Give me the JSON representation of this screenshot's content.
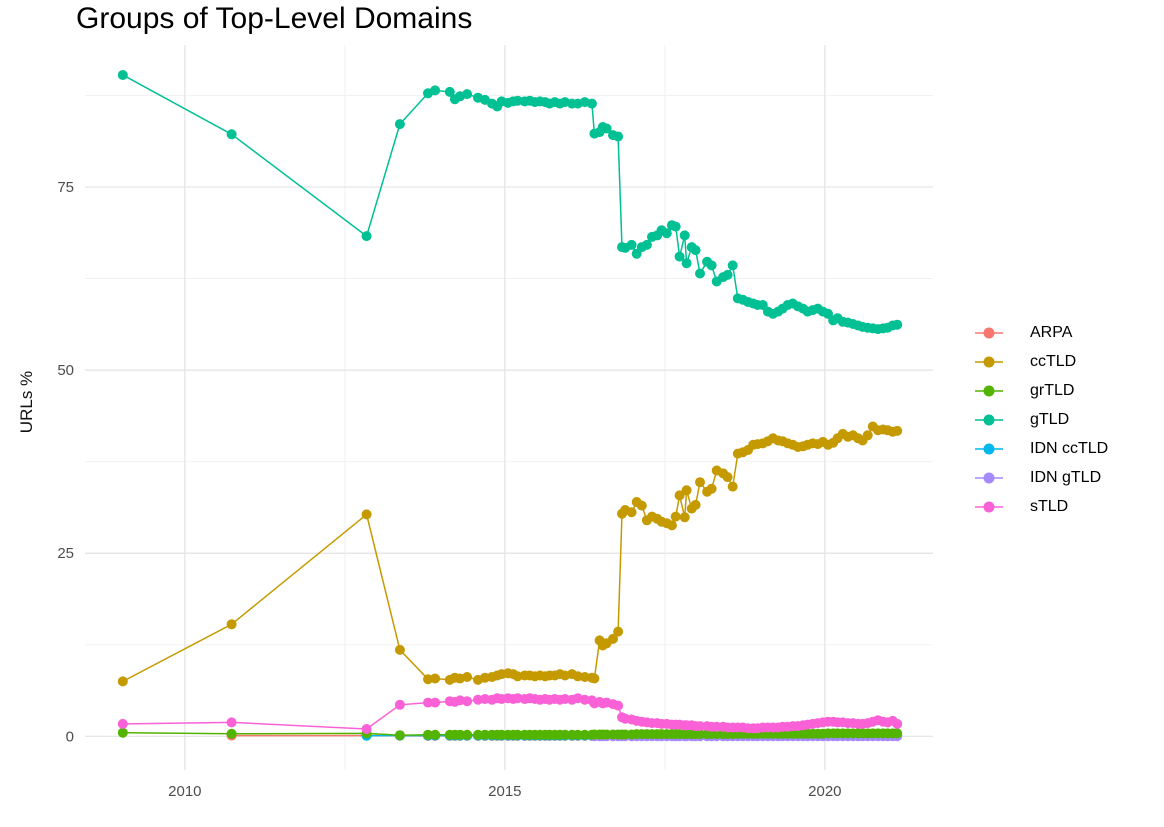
{
  "title": "Groups of Top-Level Domains",
  "legend": {
    "entries": [
      {
        "label": "ARPA",
        "color": "#F8766D"
      },
      {
        "label": "ccTLD",
        "color": "#C49A00"
      },
      {
        "label": "grTLD",
        "color": "#53B400"
      },
      {
        "label": "gTLD",
        "color": "#00C094"
      },
      {
        "label": "IDN ccTLD",
        "color": "#00B6EB"
      },
      {
        "label": "IDN gTLD",
        "color": "#A58AFF"
      },
      {
        "label": "sTLD",
        "color": "#FB61D7"
      }
    ]
  },
  "chart_data": {
    "type": "line",
    "title": "Groups of Top-Level Domains",
    "xlabel": "",
    "ylabel": "URLs %",
    "x_major_ticks": [
      2010,
      2015,
      2020
    ],
    "x_minor_ticks": [
      2012.5,
      2017.5
    ],
    "y_major_ticks": [
      0,
      25,
      50,
      75
    ],
    "y_minor_ticks": [
      12.5,
      37.5,
      62.5,
      87.5
    ],
    "xlim": [
      2008.44,
      2021.69
    ],
    "ylim": [
      -4.6,
      94.4
    ],
    "grid": "major+minor",
    "legend_position": "right",
    "tick_color": "#4d4d4d",
    "major_grid_color": "#e3e3e3",
    "minor_grid_color": "#f0f0f0",
    "dense_x": [
      2013.8,
      2013.91,
      2014.14,
      2014.22,
      2014.3,
      2014.41,
      2014.58,
      2014.69,
      2014.8,
      2014.88,
      2014.95,
      2015.05,
      2015.13,
      2015.2,
      2015.31,
      2015.39,
      2015.47,
      2015.55,
      2015.63,
      2015.7,
      2015.78,
      2015.86,
      2015.94,
      2016.05,
      2016.14,
      2016.25,
      2016.36,
      2016.4,
      2016.48,
      2016.53,
      2016.59,
      2016.69,
      2016.77,
      2016.83,
      2016.88,
      2016.98,
      2017.06,
      2017.14,
      2017.22,
      2017.3,
      2017.38,
      2017.45,
      2017.53,
      2017.61,
      2017.67,
      2017.73,
      2017.81,
      2017.84,
      2017.92,
      2017.98,
      2018.05,
      2018.16,
      2018.23,
      2018.31,
      2018.41,
      2018.48,
      2018.56,
      2018.64,
      2018.72,
      2018.8,
      2018.88,
      2018.95,
      2019.03,
      2019.11,
      2019.19,
      2019.27,
      2019.34,
      2019.42,
      2019.5,
      2019.58,
      2019.66,
      2019.73,
      2019.81,
      2019.89,
      2019.97,
      2020.05,
      2020.13,
      2020.2,
      2020.28,
      2020.36,
      2020.44,
      2020.52,
      2020.59,
      2020.67,
      2020.75,
      2020.83,
      2020.91,
      2020.98,
      2021.06,
      2021.13
    ],
    "series": [
      {
        "name": "ARPA",
        "color": "#F8766D",
        "sparse": [
          [
            2010.73,
            0.1
          ],
          [
            2012.84,
            0.1
          ],
          [
            2013.36,
            0.08
          ]
        ],
        "dense_start": 0,
        "dense": [
          0.05,
          0.05,
          0.05,
          0.05,
          0.05,
          0.05,
          0.05,
          0.05,
          0.05,
          0.05,
          0.05,
          0.05,
          0.05,
          0.05,
          0.05,
          0.05,
          0.05,
          0.05,
          0.05,
          0.05,
          0.05,
          0.05,
          0.05,
          0.05,
          0.05,
          0.05,
          0.05,
          0.05,
          0.05,
          0.05,
          0.05,
          0.05,
          0.05,
          0.05,
          0.05,
          0.05,
          0.05,
          0.05,
          0.05,
          0.05,
          0.05,
          0.05,
          0.05,
          0.05,
          0.05,
          0.05,
          0.05,
          0.05,
          0.05,
          0.05,
          0.05,
          0.05,
          0.05,
          0.05,
          0.05,
          0.05,
          0.05,
          0.05,
          0.05,
          0.05,
          0.05,
          0.05,
          0.05,
          0.05,
          0.05,
          0.05,
          0.05,
          0.05,
          0.05,
          0.05,
          0.05,
          0.05,
          0.05,
          0.05,
          0.05,
          0.05,
          0.05,
          0.05,
          0.05,
          0.05,
          0.05,
          0.05,
          0.05,
          0.05,
          0.05,
          0.05,
          0.05,
          0.05,
          0.05,
          0.05
        ]
      },
      {
        "name": "IDN ccTLD",
        "color": "#00B6EB",
        "sparse": [
          [
            2012.84,
            0.08
          ],
          [
            2013.36,
            0.1
          ]
        ],
        "dense_start": 0,
        "dense": [
          0.1,
          0.1,
          0.1,
          0.1,
          0.1,
          0.1,
          0.1,
          0.1,
          0.1,
          0.1,
          0.1,
          0.1,
          0.1,
          0.1,
          0.1,
          0.1,
          0.1,
          0.1,
          0.1,
          0.1,
          0.1,
          0.1,
          0.1,
          0.1,
          0.1,
          0.1,
          0.1,
          0.1,
          0.1,
          0.1,
          0.1,
          0.1,
          0.1,
          0.1,
          0.1,
          0.1,
          0.1,
          0.1,
          0.1,
          0.1,
          0.1,
          0.1,
          0.1,
          0.1,
          0.1,
          0.1,
          0.1,
          0.1,
          0.1,
          0.1,
          0.1,
          0.1,
          0.1,
          0.1,
          0.1,
          0.1,
          0.1,
          0.1,
          0.1,
          0.1,
          0.1,
          0.1,
          0.1,
          0.1,
          0.1,
          0.1,
          0.1,
          0.1,
          0.1,
          0.1,
          0.1,
          0.1,
          0.1,
          0.1,
          0.1,
          0.1,
          0.1,
          0.1,
          0.1,
          0.1,
          0.1,
          0.1,
          0.1,
          0.1,
          0.1,
          0.1,
          0.1,
          0.1,
          0.1,
          0.1
        ]
      },
      {
        "name": "IDN gTLD",
        "color": "#A58AFF",
        "sparse": [],
        "dense_start": 27,
        "dense": [
          0.02,
          0.02,
          0.02,
          0.02,
          0.02,
          0.02,
          0.02,
          0.02,
          0.02,
          0.02,
          0.02,
          0.02,
          0.02,
          0.02,
          0.02,
          0.02,
          0.02,
          0.02,
          0.02,
          0.02,
          0.02,
          0.02,
          0.02,
          0.02,
          0.02,
          0.02,
          0.02,
          0.02,
          0.02,
          0.02,
          0.02,
          0.02,
          0.02,
          0.02,
          0.02,
          0.02,
          0.02,
          0.02,
          0.02,
          0.02,
          0.02,
          0.02,
          0.02,
          0.02,
          0.02,
          0.02,
          0.02,
          0.02,
          0.02,
          0.02,
          0.02,
          0.02,
          0.02,
          0.02,
          0.02,
          0.02,
          0.02,
          0.02,
          0.02,
          0.02,
          0.02,
          0.02,
          0.02
        ]
      },
      {
        "name": "grTLD",
        "color": "#53B400",
        "sparse": [
          [
            2009.03,
            0.5
          ],
          [
            2010.73,
            0.35
          ],
          [
            2012.84,
            0.4
          ],
          [
            2013.36,
            0.15
          ]
        ],
        "dense_start": 0,
        "dense": [
          0.2,
          0.2,
          0.2,
          0.2,
          0.2,
          0.2,
          0.2,
          0.2,
          0.2,
          0.2,
          0.2,
          0.2,
          0.2,
          0.2,
          0.2,
          0.2,
          0.2,
          0.2,
          0.2,
          0.2,
          0.2,
          0.2,
          0.2,
          0.2,
          0.2,
          0.2,
          0.2,
          0.25,
          0.25,
          0.25,
          0.25,
          0.25,
          0.25,
          0.25,
          0.25,
          0.25,
          0.3,
          0.3,
          0.3,
          0.3,
          0.3,
          0.3,
          0.3,
          0.3,
          0.3,
          0.3,
          0.3,
          0.3,
          0.3,
          0.3,
          0.3,
          0.3,
          0.3,
          0.3,
          0.3,
          0.3,
          0.3,
          0.35,
          0.35,
          0.35,
          0.35,
          0.35,
          0.35,
          0.35,
          0.35,
          0.35,
          0.35,
          0.35,
          0.35,
          0.35,
          0.35,
          0.35,
          0.35,
          0.35,
          0.35,
          0.4,
          0.4,
          0.4,
          0.4,
          0.4,
          0.4,
          0.4,
          0.4,
          0.4,
          0.4,
          0.4,
          0.4,
          0.4,
          0.4,
          0.4
        ]
      },
      {
        "name": "ccTLD",
        "color": "#C49A00",
        "sparse": [
          [
            2009.03,
            7.5
          ],
          [
            2010.73,
            15.3
          ],
          [
            2012.84,
            30.3
          ],
          [
            2013.36,
            11.8
          ]
        ],
        "dense_start": 0,
        "dense": [
          7.8,
          7.9,
          7.7,
          8.0,
          7.9,
          8.1,
          7.7,
          8.0,
          8.1,
          8.3,
          8.5,
          8.6,
          8.5,
          8.2,
          8.3,
          8.3,
          8.2,
          8.3,
          8.2,
          8.3,
          8.3,
          8.5,
          8.3,
          8.5,
          8.2,
          8.1,
          8.0,
          7.9,
          13.1,
          12.4,
          12.7,
          13.3,
          14.3,
          30.4,
          30.9,
          30.6,
          32.0,
          31.5,
          29.5,
          30.0,
          29.7,
          29.3,
          29.1,
          28.8,
          30.0,
          32.9,
          29.9,
          33.6,
          31.1,
          31.6,
          34.7,
          33.4,
          33.8,
          36.3,
          35.9,
          35.4,
          34.1,
          38.6,
          38.8,
          39.1,
          39.8,
          39.9,
          40.0,
          40.3,
          40.7,
          40.4,
          40.3,
          40.0,
          39.8,
          39.5,
          39.6,
          39.8,
          40.0,
          39.9,
          40.2,
          39.8,
          40.1,
          40.7,
          41.3,
          40.9,
          41.1,
          40.7,
          40.4,
          41.1,
          42.3,
          41.8,
          41.9,
          41.8,
          41.6,
          41.7
        ]
      },
      {
        "name": "gTLD",
        "color": "#00C094",
        "sparse": [
          [
            2009.03,
            90.3
          ],
          [
            2010.73,
            82.2
          ],
          [
            2012.84,
            68.3
          ],
          [
            2013.36,
            83.6
          ]
        ],
        "dense_start": 0,
        "dense": [
          87.8,
          88.2,
          88.0,
          87.0,
          87.4,
          87.7,
          87.2,
          86.9,
          86.4,
          86.0,
          86.7,
          86.5,
          86.7,
          86.8,
          86.7,
          86.8,
          86.6,
          86.7,
          86.6,
          86.4,
          86.6,
          86.4,
          86.6,
          86.4,
          86.4,
          86.6,
          86.4,
          82.3,
          82.5,
          83.2,
          83.0,
          82.1,
          81.9,
          66.8,
          66.7,
          67.1,
          65.9,
          66.8,
          67.1,
          68.2,
          68.4,
          69.1,
          68.7,
          69.8,
          69.6,
          65.5,
          68.4,
          64.6,
          66.8,
          66.4,
          63.2,
          64.8,
          64.3,
          62.1,
          62.7,
          63.0,
          64.3,
          59.8,
          59.6,
          59.3,
          59.1,
          58.9,
          58.9,
          58.0,
          57.7,
          58.0,
          58.4,
          58.9,
          59.1,
          58.7,
          58.4,
          58.0,
          58.2,
          58.4,
          58.0,
          57.7,
          56.8,
          57.1,
          56.6,
          56.5,
          56.3,
          56.1,
          55.9,
          55.8,
          55.7,
          55.6,
          55.7,
          55.8,
          56.1,
          56.2
        ]
      },
      {
        "name": "sTLD",
        "color": "#FB61D7",
        "sparse": [
          [
            2009.03,
            1.7
          ],
          [
            2010.73,
            1.9
          ],
          [
            2012.84,
            1.0
          ],
          [
            2013.36,
            4.3
          ]
        ],
        "dense_start": 0,
        "dense": [
          4.6,
          4.6,
          4.8,
          4.7,
          4.9,
          4.8,
          5.0,
          5.1,
          5.0,
          5.2,
          5.1,
          5.2,
          5.1,
          5.2,
          5.1,
          5.2,
          5.1,
          5.0,
          5.1,
          5.0,
          5.1,
          5.0,
          5.1,
          5.0,
          5.2,
          5.0,
          4.9,
          4.5,
          4.7,
          4.5,
          4.6,
          4.4,
          4.2,
          2.6,
          2.4,
          2.3,
          2.1,
          2.0,
          1.9,
          1.8,
          1.8,
          1.7,
          1.7,
          1.6,
          1.6,
          1.6,
          1.5,
          1.5,
          1.5,
          1.4,
          1.4,
          1.4,
          1.3,
          1.3,
          1.3,
          1.2,
          1.2,
          1.2,
          1.2,
          1.1,
          1.1,
          1.1,
          1.2,
          1.2,
          1.2,
          1.2,
          1.3,
          1.3,
          1.4,
          1.4,
          1.5,
          1.6,
          1.7,
          1.8,
          1.9,
          2.0,
          2.0,
          1.9,
          1.9,
          1.8,
          1.8,
          1.7,
          1.7,
          1.8,
          2.0,
          2.2,
          2.0,
          1.9,
          2.1,
          1.7
        ]
      }
    ]
  }
}
